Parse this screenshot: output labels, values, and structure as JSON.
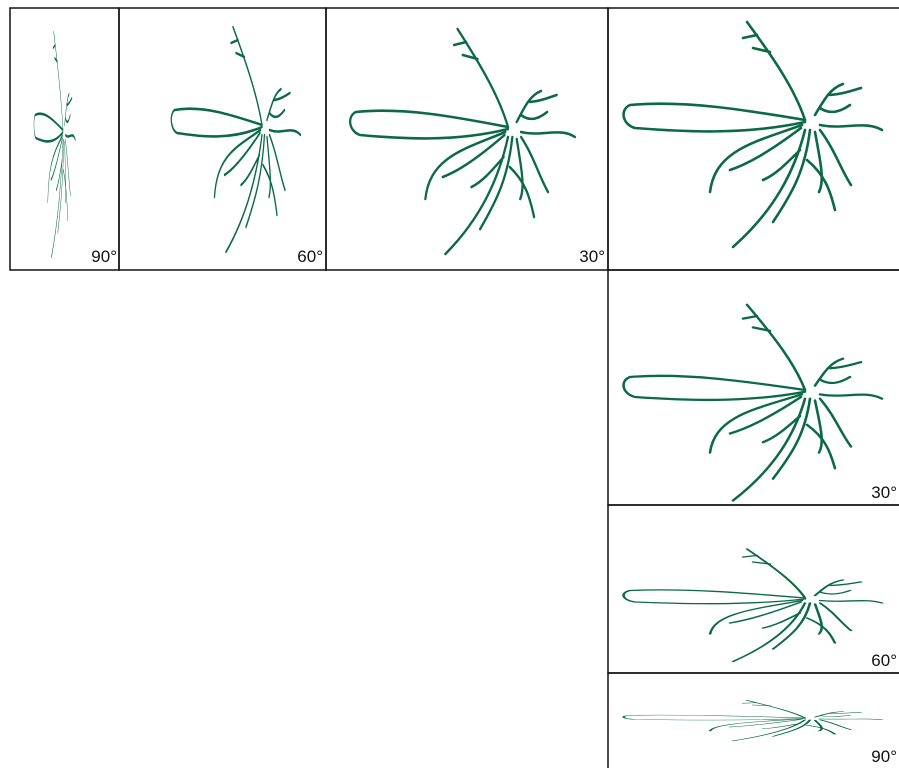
{
  "top_row_labels": [
    "90°",
    "60°",
    "30°"
  ],
  "right_column_labels": [
    "30°",
    "60°",
    "90°"
  ]
}
